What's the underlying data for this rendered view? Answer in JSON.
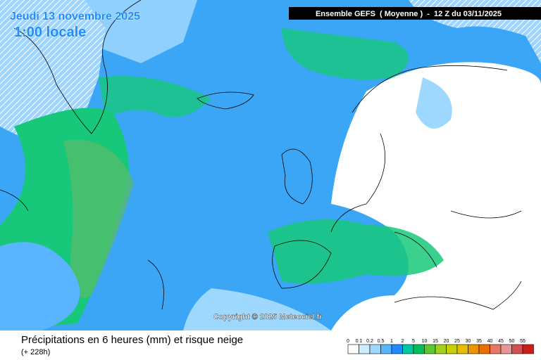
{
  "header": {
    "date": "Jeudi 13 novembre 2025",
    "time": "1:00 locale",
    "run": "Ensemble GEFS  ( Moyenne )  -  12 Z du 03/11/2025"
  },
  "copyright": "Copyright © 2025 Meteociel.fr",
  "footer": {
    "title": "Précipitations en 6 heures (mm) et risque neige",
    "lead": "(+ 228h)"
  },
  "legend": {
    "labels": [
      0,
      0.1,
      0.2,
      0.5,
      1,
      2,
      5,
      10,
      15,
      20,
      25,
      30,
      35,
      40,
      45,
      50,
      55
    ],
    "colors": [
      "#ffffff",
      "#cdeeff",
      "#9ed8ff",
      "#5ab4ff",
      "#1e8cff",
      "#00c8a0",
      "#00be5a",
      "#5ac832",
      "#a0d21e",
      "#c8d200",
      "#e6be00",
      "#eb9600",
      "#eb6e00",
      "#e67864",
      "#e69696",
      "#d25050",
      "#c81e1e"
    ]
  }
}
